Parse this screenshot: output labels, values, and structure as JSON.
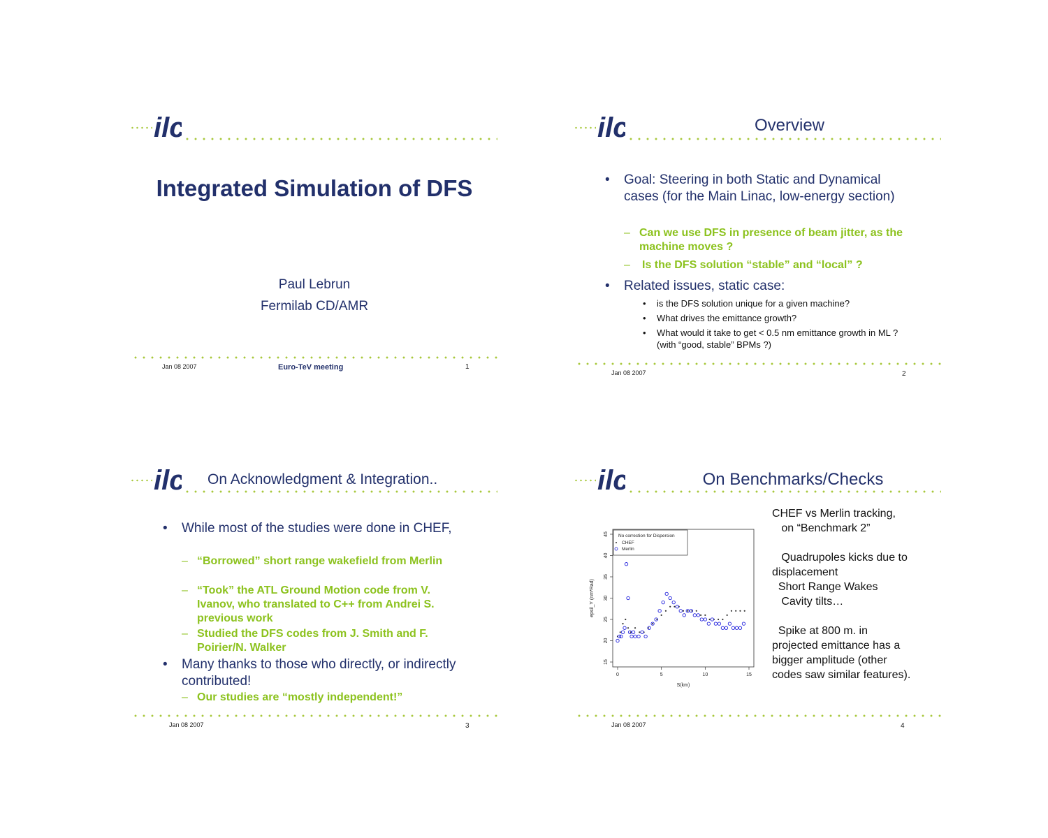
{
  "slide1": {
    "title": "Integrated Simulation of DFS",
    "author": "Paul Lebrun",
    "affiliation": "Fermilab CD/AMR",
    "date": "Jan 08 2007",
    "footer_center": "Euro-TeV meeting",
    "number": "1"
  },
  "slide2": {
    "title": "Overview",
    "bullet1": "Goal: Steering in both Static and Dynamical cases (for the Main Linac, low-energy section)",
    "sub1": "Can we use DFS in presence of beam jitter, as the machine moves ?",
    "sub2": "Is the DFS solution “stable” and “local” ?",
    "bullet2": "Related issues, static case:",
    "small1": "is the DFS solution unique for a given machine?",
    "small2": "What drives the emittance growth?",
    "small3": "What would it take to get < 0.5 nm emittance growth in ML ? (with “good, stable” BPMs ?)",
    "date": "Jan 08 2007",
    "number": "2"
  },
  "slide3": {
    "title": "On Acknowledgment & Integration..",
    "bullet1": "While most of the studies were done in CHEF,",
    "sub1": "“Borrowed” short range wakefield  from Merlin",
    "sub2": "“Took” the ATL Ground Motion code from V. Ivanov, who translated to C++ from Andrei S. previous work",
    "sub3": "Studied the DFS codes from J. Smith and F. Poirier/N. Walker",
    "bullet2": "Many thanks to those who directly, or indirectly contributed!",
    "sub4": "Our studies are “mostly independent!”",
    "date": "Jan 08 2007",
    "number": "3"
  },
  "slide4": {
    "title": "On Benchmarks/Checks",
    "text1": "CHEF vs Merlin tracking,\n   on “Benchmark 2”",
    "text2": "   Quadrupoles kicks due to\ndisplacement\n  Short Range Wakes\n   Cavity tilts…",
    "text3": "  Spike at 800 m. in\nprojected emittance has a\nbigger amplitude (other\ncodes saw similar features).",
    "date": "Jan 08 2007",
    "number": "4"
  },
  "chart_data": {
    "type": "scatter",
    "title": "",
    "xlabel": "S(km)",
    "ylabel": "epsil_Y (nm*Rad)",
    "xlim": [
      0,
      15
    ],
    "ylim": [
      15,
      45
    ],
    "xticks": [
      "0",
      "5",
      "10",
      "15"
    ],
    "yticks": [
      "15",
      "20",
      "25",
      "30",
      "35",
      "40",
      "45"
    ],
    "legend_title": "No correction for Dispersion",
    "legend_placement": "top-left",
    "series": [
      {
        "name": "CHEF",
        "marker": "dot",
        "color": "#333333",
        "x": [
          0.0,
          0.3,
          0.6,
          0.9,
          1.2,
          1.5,
          2.0,
          2.5,
          3.0,
          3.5,
          4.0,
          4.5,
          5.0,
          5.5,
          6.0,
          6.5,
          7.0,
          7.5,
          8.0,
          8.5,
          9.0,
          9.5,
          10.0,
          10.5,
          11.0,
          11.5,
          12.0,
          12.5,
          13.0,
          13.5,
          14.0,
          14.5
        ],
        "y": [
          21,
          22,
          24,
          25,
          23,
          22,
          23,
          22,
          22,
          23,
          24,
          25,
          26,
          27,
          28,
          28,
          28,
          27,
          27,
          27,
          27,
          26,
          26,
          25,
          25,
          25,
          25,
          26,
          27,
          27,
          27,
          27
        ]
      },
      {
        "name": "Merlin",
        "marker": "circle",
        "color": "#2222dd",
        "x": [
          0.0,
          0.2,
          0.4,
          0.6,
          0.8,
          1.0,
          1.2,
          1.4,
          1.6,
          1.8,
          2.0,
          2.4,
          2.8,
          3.2,
          3.6,
          4.0,
          4.4,
          4.8,
          5.2,
          5.6,
          6.0,
          6.4,
          6.8,
          7.2,
          7.6,
          8.0,
          8.4,
          8.8,
          9.2,
          9.6,
          10.0,
          10.4,
          10.8,
          11.2,
          11.6,
          12.0,
          12.4,
          12.8,
          13.2,
          13.6,
          14.0,
          14.4
        ],
        "y": [
          20,
          21,
          21,
          22,
          23,
          38,
          30,
          22,
          21,
          22,
          21,
          21,
          22,
          21,
          23,
          24,
          25,
          27,
          29,
          31,
          30,
          29,
          28,
          27,
          26,
          27,
          27,
          26,
          26,
          25,
          25,
          24,
          25,
          24,
          24,
          23,
          23,
          24,
          23,
          23,
          23,
          24
        ]
      }
    ]
  }
}
